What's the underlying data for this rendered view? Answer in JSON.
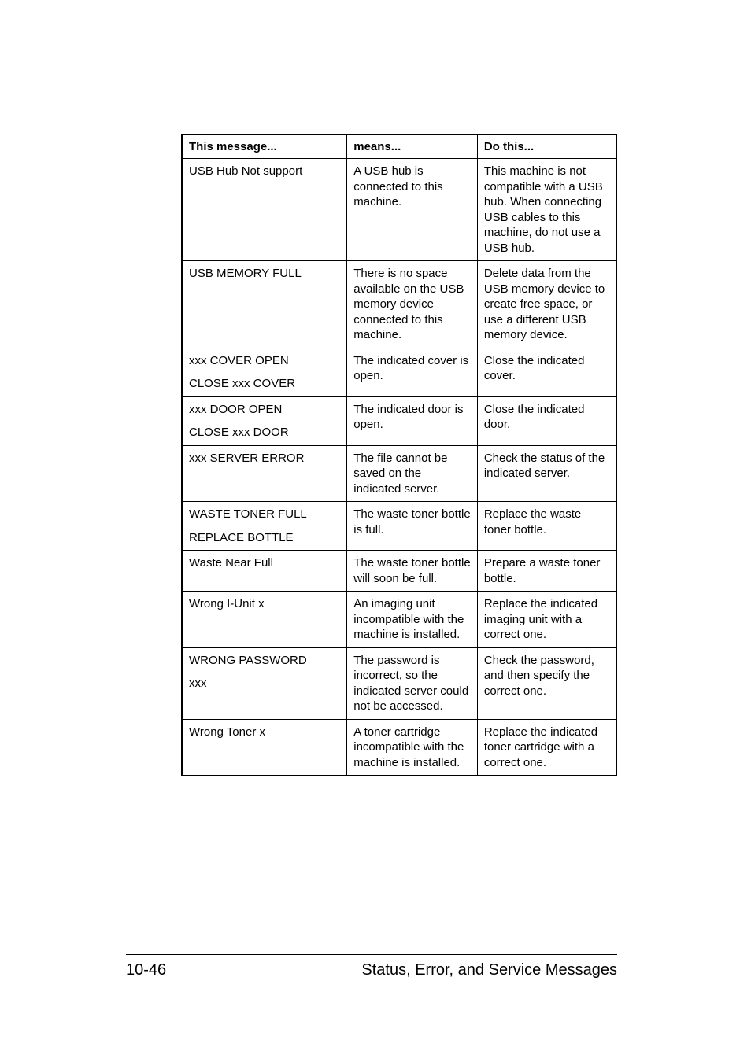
{
  "table": {
    "background_color": "#ffffff",
    "border_color": "#000000",
    "font_family": "Helvetica, Arial, sans-serif",
    "header_fontsize": 15,
    "cell_fontsize": 15,
    "columns": [
      {
        "key": "message",
        "label": "This message...",
        "width": "38%"
      },
      {
        "key": "means",
        "label": "means...",
        "width": "30%"
      },
      {
        "key": "dothis",
        "label": "Do this...",
        "width": "32%"
      }
    ],
    "rows": [
      {
        "message": "USB Hub Not support",
        "means": "A USB hub is connected to this machine.",
        "dothis": "This machine is not compatible with a USB hub. When connecting USB cables to this machine, do not use a USB hub."
      },
      {
        "message": "USB MEMORY FULL",
        "means": "There is no space available on the USB memory device connected to this machine.",
        "dothis": "Delete data from the USB memory device to create free space, or use a different USB memory device."
      },
      {
        "message": "xxx COVER OPEN\nCLOSE xxx COVER",
        "means": "The indicated cover is open.",
        "dothis": "Close the indicated cover."
      },
      {
        "message": "xxx DOOR OPEN\nCLOSE xxx DOOR",
        "means": "The indicated door is open.",
        "dothis": "Close the indicated door."
      },
      {
        "message": "xxx SERVER ERROR",
        "means": "The file cannot be saved on the indicated server.",
        "dothis": "Check the status of the indicated server."
      },
      {
        "message": "WASTE TONER FULL\nREPLACE BOTTLE",
        "means": "The waste toner bottle is full.",
        "dothis": "Replace the waste toner bottle."
      },
      {
        "message": "Waste Near Full",
        "means": "The waste toner bottle will soon be full.",
        "dothis": "Prepare a waste toner bottle."
      },
      {
        "message": "Wrong I-Unit x",
        "means": "An imaging unit incompatible with the machine is installed.",
        "dothis": "Replace the indicated imaging unit with a correct one."
      },
      {
        "message": "WRONG PASSWORD\nxxx",
        "means": "The password is incorrect, so the indicated server could not be accessed.",
        "dothis": "Check the password, and then specify the correct one."
      },
      {
        "message": "Wrong Toner x",
        "means": "A toner cartridge incompatible with the machine is installed.",
        "dothis": "Replace the indicated toner cartridge with a correct one."
      }
    ]
  },
  "footer": {
    "page_number": "10-46",
    "title": "Status, Error, and Service Messages",
    "border_color": "#000000",
    "fontsize": 20
  }
}
